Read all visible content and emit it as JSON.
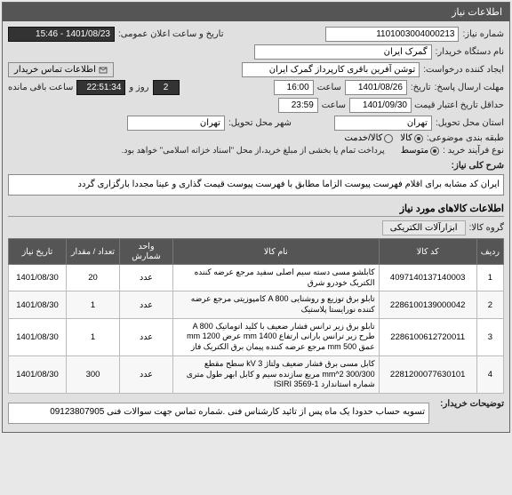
{
  "panel_title": "اطلاعات نیاز",
  "form": {
    "need_no_label": "شماره نیاز:",
    "need_no": "1101003004000213",
    "announce_label": "تاریخ و ساعت اعلان عمومی:",
    "announce_value": "1401/08/23 - 15:46",
    "buyer_label": "نام دستگاه خریدار:",
    "buyer_value": "گمرک ایران",
    "requester_label": "ایجاد کننده درخواست:",
    "requester_value": "توشن آفرین باقری کارپرداز گمرک ایران",
    "contact_btn": "اطلاعات تماس خریدار",
    "deadline_label": "مهلت ارسال پاسخ:",
    "deadline_date": "1401/08/26",
    "time_label": "ساعت",
    "deadline_time": "16:00",
    "remain_days": "2",
    "day_and_label": "روز و",
    "remain_time": "22:51:34",
    "remain_suffix": "ساعت باقی مانده",
    "until_label": "تاریخ:",
    "validity_label": "حداقل تاریخ اعتبار قیمت تا تاریخ:",
    "validity_date": "1401/09/30",
    "validity_time": "23:59",
    "province_label": "استان محل تحویل:",
    "province_value": "تهران",
    "city_label": "شهر محل تحویل:",
    "city_value": "تهران",
    "category_label": "طبقه بندی موضوعی:",
    "cat_goods": "کالا",
    "cat_service": "کالا/خدمت",
    "process_label": "نوع فرآیند خرید :",
    "proc_medium": "متوسط",
    "proc_note": "پرداخت تمام یا بخشی از مبلغ خرید،از محل \"اسناد خزانه اسلامی\" خواهد بود."
  },
  "description": {
    "label": "شرح کلی نیاز:",
    "text": "ایران کد مشابه برای اقلام فهرست پیوست الزاما مطابق با فهرست پیوست قیمت گذاری و عینا مجددا بارگزاری گردد"
  },
  "items_section": {
    "title": "اطلاعات کالاهای مورد نیاز",
    "group_label": "گروه کالا:",
    "group_value": "ابزارآلات الکتریکی"
  },
  "table": {
    "columns": [
      "ردیف",
      "کد کالا",
      "نام کالا",
      "واحد شمارش",
      "تعداد / مقدار",
      "تاریخ نیاز"
    ],
    "rows": [
      [
        "1",
        "4097140137140003",
        "کابلشو مسی دسته سیم اصلی سفید مرجع عرضه کننده الکتریک خودرو شرق",
        "عدد",
        "20",
        "1401/08/30"
      ],
      [
        "2",
        "2286100139000042",
        "تابلو برق توزیع و روشنایی A 800 کامپوزیتی مرجع عرضه کننده نورایستا پلاستیک",
        "عدد",
        "1",
        "1401/08/30"
      ],
      [
        "3",
        "2286100612720011",
        "تابلو برق زیر ترانس فشار ضعیف با کلید اتوماتیک A 800 طرح زیر ترانس بارانی ارتفاع mm 1400 عرض mm 1200 عمق mm 500 مرجع عرضه کننده پیمان برق الکتریک فاز",
        "عدد",
        "1",
        "1401/08/30"
      ],
      [
        "4",
        "2281200077630101",
        "کابل مسی برق فشار ضعیف ولتاژ kV 3 سطح مقطع 300/300 mm^2 مربع سازنده سیم و کابل ابهر طول متری شماره استاندارد ISIRI 3569-1",
        "عدد",
        "300",
        "1401/08/30"
      ]
    ]
  },
  "notes": {
    "label": "توضیحات خریدار:",
    "text": "تسویه حساب حدودا یک ماه پس از تائید کارشناس فنی .شماره تماس جهت سوالات فنی 09123807905"
  }
}
